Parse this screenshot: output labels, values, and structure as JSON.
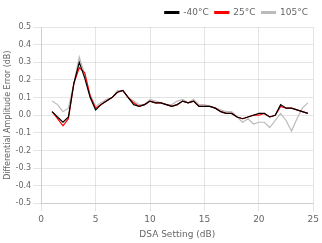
{
  "chart_data": {
    "type": "line",
    "xlabel": "DSA Setting (dB)",
    "ylabel": "Differential Amplitude Error (dB)",
    "xlim": [
      0,
      25
    ],
    "ylim": [
      -0.5,
      0.5
    ],
    "xticks": [
      0,
      5,
      10,
      15,
      20,
      25
    ],
    "yticks": [
      -0.5,
      -0.4,
      -0.3,
      -0.2,
      -0.1,
      {
        "value": 0.0,
        "label": "0.0"
      },
      0.1,
      0.2,
      0.3,
      0.4,
      0.5
    ],
    "grid": true,
    "legend": "upper right",
    "x": [
      1.0,
      1.5,
      2.0,
      2.5,
      3.0,
      3.5,
      4.0,
      4.5,
      5.0,
      5.5,
      6.0,
      6.5,
      7.0,
      7.5,
      8.0,
      8.5,
      9.0,
      9.5,
      10.0,
      10.5,
      11.0,
      11.5,
      12.0,
      12.5,
      13.0,
      13.5,
      14.0,
      14.5,
      15.0,
      15.5,
      16.0,
      16.5,
      17.0,
      17.5,
      18.0,
      18.5,
      19.0,
      19.5,
      20.0,
      20.5,
      21.0,
      21.5,
      22.0,
      22.5,
      23.0,
      23.5,
      24.0,
      24.5
    ],
    "series": [
      {
        "name": "-40°C",
        "color": "#000000",
        "values": [
          0.02,
          -0.01,
          -0.04,
          -0.01,
          0.18,
          0.3,
          0.21,
          0.1,
          0.03,
          0.06,
          0.08,
          0.1,
          0.13,
          0.14,
          0.1,
          0.06,
          0.05,
          0.06,
          0.08,
          0.07,
          0.07,
          0.06,
          0.05,
          0.06,
          0.08,
          0.07,
          0.08,
          0.05,
          0.05,
          0.05,
          0.04,
          0.02,
          0.01,
          0.01,
          -0.01,
          -0.02,
          -0.01,
          0.0,
          0.01,
          0.01,
          -0.01,
          0.0,
          0.06,
          0.04,
          0.04,
          0.03,
          0.02,
          0.01
        ]
      },
      {
        "name": "25°C",
        "color": "#ff0000",
        "values": [
          0.02,
          -0.02,
          -0.06,
          -0.02,
          0.18,
          0.27,
          0.24,
          0.11,
          0.04,
          0.06,
          0.08,
          0.1,
          0.13,
          0.14,
          0.1,
          0.07,
          0.05,
          0.06,
          0.08,
          0.07,
          0.07,
          0.06,
          0.05,
          0.06,
          0.08,
          0.07,
          0.08,
          0.05,
          0.05,
          0.05,
          0.04,
          0.02,
          0.01,
          0.01,
          -0.01,
          -0.02,
          -0.01,
          0.0,
          0.0,
          0.01,
          -0.01,
          0.0,
          0.05,
          0.04,
          0.04,
          0.03,
          0.02,
          0.01
        ]
      },
      {
        "name": "105°C",
        "color": "#bbbbbb",
        "values": [
          0.08,
          0.06,
          0.02,
          0.04,
          0.18,
          0.33,
          0.23,
          0.11,
          0.05,
          0.07,
          0.09,
          0.1,
          0.14,
          0.14,
          0.1,
          0.08,
          0.06,
          0.06,
          0.09,
          0.08,
          0.07,
          0.06,
          0.06,
          0.08,
          0.09,
          0.07,
          0.09,
          0.06,
          0.06,
          0.05,
          0.04,
          0.03,
          0.02,
          0.02,
          -0.01,
          -0.04,
          -0.02,
          -0.05,
          -0.04,
          -0.04,
          -0.07,
          -0.03,
          0.01,
          -0.03,
          -0.09,
          -0.02,
          0.04,
          0.07
        ]
      }
    ]
  }
}
